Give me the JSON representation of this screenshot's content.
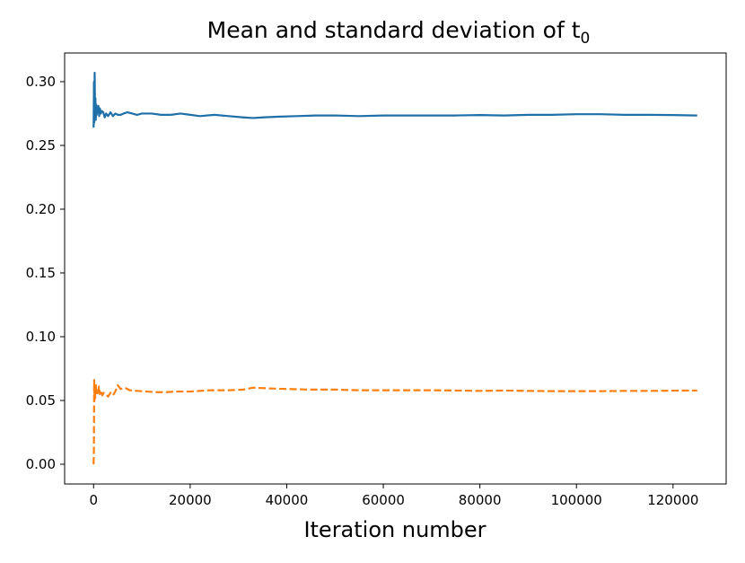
{
  "chart_data": {
    "type": "line",
    "title": "Mean and standard deviation of t",
    "title_subscript": "0",
    "xlabel": "Iteration number",
    "ylabel": "",
    "xlim": [
      -6000,
      131000
    ],
    "ylim": [
      -0.0155,
      0.3225
    ],
    "xticks": [
      0,
      20000,
      40000,
      60000,
      80000,
      100000,
      120000
    ],
    "yticks": [
      0.0,
      0.05,
      0.1,
      0.15,
      0.2,
      0.25,
      0.3
    ],
    "xtick_labels": [
      "0",
      "20000",
      "40000",
      "60000",
      "80000",
      "100000",
      "120000"
    ],
    "ytick_labels": [
      "0.00",
      "0.05",
      "0.10",
      "0.15",
      "0.20",
      "0.25",
      "0.30"
    ],
    "grid": false,
    "legend": "none",
    "series": [
      {
        "name": "mean",
        "color": "#1f6fa8",
        "dash": "solid",
        "x": [
          0,
          80,
          150,
          220,
          300,
          380,
          450,
          550,
          650,
          760,
          870,
          1000,
          1150,
          1300,
          1500,
          1700,
          2000,
          2300,
          2600,
          3000,
          3500,
          4000,
          4500,
          5000,
          5600,
          6200,
          7000,
          8000,
          9000,
          10000,
          12000,
          14000,
          16000,
          18000,
          20000,
          22000,
          25000,
          28000,
          31000,
          33000,
          35000,
          38000,
          42000,
          46000,
          50000,
          55000,
          60000,
          65000,
          70000,
          75000,
          80000,
          85000,
          90000,
          95000,
          100000,
          105000,
          110000,
          115000,
          120000,
          125000
        ],
        "values": [
          0.264,
          0.3,
          0.268,
          0.307,
          0.277,
          0.287,
          0.27,
          0.282,
          0.274,
          0.28,
          0.276,
          0.281,
          0.273,
          0.279,
          0.275,
          0.277,
          0.276,
          0.272,
          0.275,
          0.273,
          0.276,
          0.273,
          0.275,
          0.274,
          0.274,
          0.275,
          0.276,
          0.275,
          0.274,
          0.275,
          0.275,
          0.274,
          0.274,
          0.275,
          0.274,
          0.273,
          0.274,
          0.273,
          0.272,
          0.2715,
          0.272,
          0.2725,
          0.273,
          0.2735,
          0.2735,
          0.273,
          0.2735,
          0.2735,
          0.2735,
          0.2735,
          0.2738,
          0.2735,
          0.274,
          0.274,
          0.2745,
          0.2745,
          0.274,
          0.274,
          0.2738,
          0.2735
        ]
      },
      {
        "name": "standard deviation",
        "color": "#ff7f0e",
        "dash": "dashed",
        "x": [
          0,
          60,
          120,
          200,
          280,
          350,
          450,
          550,
          650,
          800,
          950,
          1100,
          1300,
          1500,
          1800,
          2100,
          2500,
          3000,
          3500,
          4000,
          4500,
          5000,
          5600,
          6500,
          7500,
          9000,
          11000,
          13000,
          15000,
          17000,
          20000,
          24000,
          28000,
          31000,
          33000,
          36000,
          40000,
          45000,
          50000,
          55000,
          60000,
          65000,
          70000,
          75000,
          80000,
          85000,
          90000,
          95000,
          100000,
          105000,
          110000,
          115000,
          120000,
          125000
        ],
        "values": [
          0.0,
          0.01,
          0.066,
          0.05,
          0.061,
          0.052,
          0.063,
          0.055,
          0.058,
          0.054,
          0.057,
          0.061,
          0.055,
          0.058,
          0.054,
          0.056,
          0.055,
          0.053,
          0.056,
          0.054,
          0.057,
          0.062,
          0.059,
          0.06,
          0.058,
          0.0575,
          0.057,
          0.0565,
          0.0565,
          0.057,
          0.057,
          0.058,
          0.058,
          0.0585,
          0.06,
          0.0595,
          0.059,
          0.0585,
          0.0585,
          0.058,
          0.058,
          0.058,
          0.058,
          0.0578,
          0.0575,
          0.0578,
          0.0575,
          0.0573,
          0.0573,
          0.0573,
          0.0575,
          0.0575,
          0.0577,
          0.0578
        ]
      }
    ]
  }
}
